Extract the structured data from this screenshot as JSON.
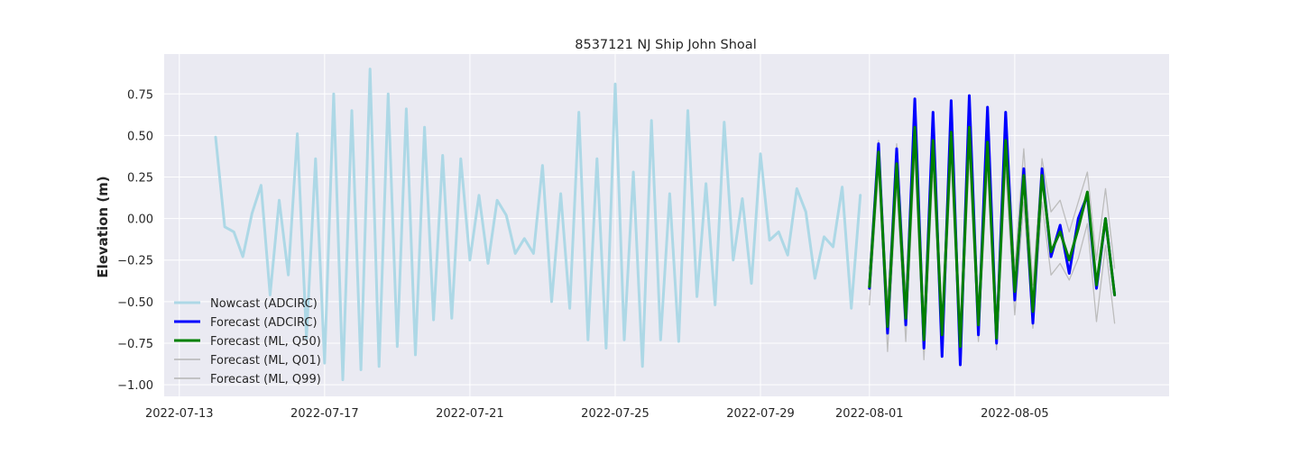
{
  "chart_data": {
    "type": "line",
    "title": "8537121 NJ Ship John Shoal",
    "xlabel": "",
    "ylabel": "Elevation (m)",
    "xlim": [
      "2022-07-12T14:00",
      "2022-08-09T06:00"
    ],
    "ylim": [
      -1.07,
      0.99
    ],
    "grid": true,
    "legend_position": "lower-left",
    "x_ticks": [
      "2022-07-13",
      "2022-07-17",
      "2022-07-21",
      "2022-07-25",
      "2022-07-29",
      "2022-08-01",
      "2022-08-05"
    ],
    "y_ticks": [
      "0.75",
      "0.50",
      "0.25",
      "0.00",
      "−0.25",
      "−0.50",
      "−0.75",
      "−1.00"
    ],
    "y_tick_values": [
      0.75,
      0.5,
      0.25,
      0.0,
      -0.25,
      -0.5,
      -0.75,
      -1.0
    ],
    "series": [
      {
        "name": "Nowcast (ADCIRC)",
        "color": "#add8e6",
        "width": 3,
        "legend_width": 3,
        "points": [
          [
            "2022-07-14T00:00",
            0.49
          ],
          [
            "2022-07-14T06:00",
            -0.05
          ],
          [
            "2022-07-14T12:00",
            -0.08
          ],
          [
            "2022-07-14T18:00",
            -0.23
          ],
          [
            "2022-07-15T00:00",
            0.03
          ],
          [
            "2022-07-15T06:00",
            0.2
          ],
          [
            "2022-07-15T12:00",
            -0.46
          ],
          [
            "2022-07-15T18:00",
            0.11
          ],
          [
            "2022-07-16T00:00",
            -0.34
          ],
          [
            "2022-07-16T06:00",
            0.51
          ],
          [
            "2022-07-16T12:00",
            -0.72
          ],
          [
            "2022-07-16T18:00",
            0.36
          ],
          [
            "2022-07-17T00:00",
            -0.87
          ],
          [
            "2022-07-17T06:00",
            0.75
          ],
          [
            "2022-07-17T12:00",
            -0.97
          ],
          [
            "2022-07-17T18:00",
            0.65
          ],
          [
            "2022-07-18T00:00",
            -0.91
          ],
          [
            "2022-07-18T06:00",
            0.9
          ],
          [
            "2022-07-18T12:00",
            -0.89
          ],
          [
            "2022-07-18T18:00",
            0.75
          ],
          [
            "2022-07-19T00:00",
            -0.77
          ],
          [
            "2022-07-19T06:00",
            0.66
          ],
          [
            "2022-07-19T12:00",
            -0.82
          ],
          [
            "2022-07-19T18:00",
            0.55
          ],
          [
            "2022-07-20T00:00",
            -0.61
          ],
          [
            "2022-07-20T06:00",
            0.38
          ],
          [
            "2022-07-20T12:00",
            -0.6
          ],
          [
            "2022-07-20T18:00",
            0.36
          ],
          [
            "2022-07-21T00:00",
            -0.25
          ],
          [
            "2022-07-21T06:00",
            0.14
          ],
          [
            "2022-07-21T12:00",
            -0.27
          ],
          [
            "2022-07-21T18:00",
            0.11
          ],
          [
            "2022-07-22T00:00",
            0.02
          ],
          [
            "2022-07-22T06:00",
            -0.21
          ],
          [
            "2022-07-22T12:00",
            -0.12
          ],
          [
            "2022-07-22T18:00",
            -0.21
          ],
          [
            "2022-07-23T00:00",
            0.32
          ],
          [
            "2022-07-23T06:00",
            -0.5
          ],
          [
            "2022-07-23T12:00",
            0.15
          ],
          [
            "2022-07-23T18:00",
            -0.54
          ],
          [
            "2022-07-24T00:00",
            0.64
          ],
          [
            "2022-07-24T06:00",
            -0.73
          ],
          [
            "2022-07-24T12:00",
            0.36
          ],
          [
            "2022-07-24T18:00",
            -0.78
          ],
          [
            "2022-07-25T00:00",
            0.81
          ],
          [
            "2022-07-25T06:00",
            -0.73
          ],
          [
            "2022-07-25T12:00",
            0.28
          ],
          [
            "2022-07-25T18:00",
            -0.89
          ],
          [
            "2022-07-26T00:00",
            0.59
          ],
          [
            "2022-07-26T06:00",
            -0.73
          ],
          [
            "2022-07-26T12:00",
            0.15
          ],
          [
            "2022-07-26T18:00",
            -0.74
          ],
          [
            "2022-07-27T00:00",
            0.65
          ],
          [
            "2022-07-27T06:00",
            -0.47
          ],
          [
            "2022-07-27T12:00",
            0.21
          ],
          [
            "2022-07-27T18:00",
            -0.52
          ],
          [
            "2022-07-28T00:00",
            0.58
          ],
          [
            "2022-07-28T06:00",
            -0.25
          ],
          [
            "2022-07-28T12:00",
            0.12
          ],
          [
            "2022-07-28T18:00",
            -0.39
          ],
          [
            "2022-07-29T00:00",
            0.39
          ],
          [
            "2022-07-29T06:00",
            -0.13
          ],
          [
            "2022-07-29T12:00",
            -0.08
          ],
          [
            "2022-07-29T18:00",
            -0.22
          ],
          [
            "2022-07-30T00:00",
            0.18
          ],
          [
            "2022-07-30T06:00",
            0.04
          ],
          [
            "2022-07-30T12:00",
            -0.36
          ],
          [
            "2022-07-30T18:00",
            -0.11
          ],
          [
            "2022-07-31T00:00",
            -0.17
          ],
          [
            "2022-07-31T06:00",
            0.19
          ],
          [
            "2022-07-31T12:00",
            -0.54
          ],
          [
            "2022-07-31T18:00",
            0.14
          ]
        ]
      },
      {
        "name": "Forecast (ADCIRC)",
        "color": "#0000ff",
        "width": 3,
        "legend_width": 3,
        "points": [
          [
            "2022-08-01T00:00",
            -0.42
          ],
          [
            "2022-08-01T06:00",
            0.45
          ],
          [
            "2022-08-01T12:00",
            -0.69
          ],
          [
            "2022-08-01T18:00",
            0.42
          ],
          [
            "2022-08-02T00:00",
            -0.64
          ],
          [
            "2022-08-02T06:00",
            0.72
          ],
          [
            "2022-08-02T12:00",
            -0.78
          ],
          [
            "2022-08-02T18:00",
            0.64
          ],
          [
            "2022-08-03T00:00",
            -0.83
          ],
          [
            "2022-08-03T06:00",
            0.71
          ],
          [
            "2022-08-03T12:00",
            -0.88
          ],
          [
            "2022-08-03T18:00",
            0.74
          ],
          [
            "2022-08-04T00:00",
            -0.7
          ],
          [
            "2022-08-04T06:00",
            0.67
          ],
          [
            "2022-08-04T12:00",
            -0.75
          ],
          [
            "2022-08-04T18:00",
            0.64
          ],
          [
            "2022-08-05T00:00",
            -0.49
          ],
          [
            "2022-08-05T06:00",
            0.3
          ],
          [
            "2022-08-05T12:00",
            -0.63
          ],
          [
            "2022-08-05T18:00",
            0.3
          ],
          [
            "2022-08-06T00:00",
            -0.23
          ],
          [
            "2022-08-06T06:00",
            -0.04
          ],
          [
            "2022-08-06T12:00",
            -0.33
          ],
          [
            "2022-08-06T18:00",
            0.0
          ],
          [
            "2022-08-07T00:00",
            0.14
          ],
          [
            "2022-08-07T06:00",
            -0.42
          ],
          [
            "2022-08-07T12:00",
            0.0
          ],
          [
            "2022-08-07T18:00",
            -0.46
          ]
        ]
      },
      {
        "name": "Forecast (ML, Q50)",
        "color": "#008000",
        "width": 3,
        "legend_width": 3,
        "points": [
          [
            "2022-08-01T00:00",
            -0.41
          ],
          [
            "2022-08-01T06:00",
            0.4
          ],
          [
            "2022-08-01T12:00",
            -0.65
          ],
          [
            "2022-08-01T18:00",
            0.33
          ],
          [
            "2022-08-02T00:00",
            -0.6
          ],
          [
            "2022-08-02T06:00",
            0.55
          ],
          [
            "2022-08-02T12:00",
            -0.73
          ],
          [
            "2022-08-02T18:00",
            0.47
          ],
          [
            "2022-08-03T00:00",
            -0.7
          ],
          [
            "2022-08-03T06:00",
            0.52
          ],
          [
            "2022-08-03T12:00",
            -0.77
          ],
          [
            "2022-08-03T18:00",
            0.55
          ],
          [
            "2022-08-04T00:00",
            -0.64
          ],
          [
            "2022-08-04T06:00",
            0.46
          ],
          [
            "2022-08-04T12:00",
            -0.72
          ],
          [
            "2022-08-04T18:00",
            0.47
          ],
          [
            "2022-08-05T00:00",
            -0.44
          ],
          [
            "2022-08-05T06:00",
            0.26
          ],
          [
            "2022-08-05T12:00",
            -0.56
          ],
          [
            "2022-08-05T18:00",
            0.26
          ],
          [
            "2022-08-06T00:00",
            -0.2
          ],
          [
            "2022-08-06T06:00",
            -0.08
          ],
          [
            "2022-08-06T12:00",
            -0.25
          ],
          [
            "2022-08-06T18:00",
            -0.06
          ],
          [
            "2022-08-07T00:00",
            0.16
          ],
          [
            "2022-08-07T06:00",
            -0.4
          ],
          [
            "2022-08-07T12:00",
            0.0
          ],
          [
            "2022-08-07T18:00",
            -0.46
          ]
        ]
      },
      {
        "name": "Forecast (ML, Q01)",
        "color": "#bdbdbd",
        "width": 1.3,
        "legend_width": 1.8,
        "points": [
          [
            "2022-08-01T00:00",
            -0.52
          ],
          [
            "2022-08-01T06:00",
            0.3
          ],
          [
            "2022-08-01T12:00",
            -0.8
          ],
          [
            "2022-08-01T18:00",
            0.2
          ],
          [
            "2022-08-02T00:00",
            -0.74
          ],
          [
            "2022-08-02T06:00",
            0.38
          ],
          [
            "2022-08-02T12:00",
            -0.85
          ],
          [
            "2022-08-02T18:00",
            0.3
          ],
          [
            "2022-08-03T00:00",
            -0.8
          ],
          [
            "2022-08-03T06:00",
            0.36
          ],
          [
            "2022-08-03T12:00",
            -0.87
          ],
          [
            "2022-08-03T18:00",
            0.38
          ],
          [
            "2022-08-04T00:00",
            -0.74
          ],
          [
            "2022-08-04T06:00",
            0.3
          ],
          [
            "2022-08-04T12:00",
            -0.79
          ],
          [
            "2022-08-04T18:00",
            0.3
          ],
          [
            "2022-08-05T00:00",
            -0.58
          ],
          [
            "2022-08-05T06:00",
            0.1
          ],
          [
            "2022-08-05T12:00",
            -0.66
          ],
          [
            "2022-08-05T18:00",
            0.1
          ],
          [
            "2022-08-06T00:00",
            -0.34
          ],
          [
            "2022-08-06T06:00",
            -0.27
          ],
          [
            "2022-08-06T12:00",
            -0.37
          ],
          [
            "2022-08-06T18:00",
            -0.24
          ],
          [
            "2022-08-07T00:00",
            -0.03
          ],
          [
            "2022-08-07T06:00",
            -0.62
          ],
          [
            "2022-08-07T12:00",
            -0.16
          ],
          [
            "2022-08-07T18:00",
            -0.63
          ]
        ]
      },
      {
        "name": "Forecast (ML, Q99)",
        "color": "#bdbdbd",
        "width": 1.3,
        "legend_width": 1.8,
        "points": [
          [
            "2022-08-01T00:00",
            -0.3
          ],
          [
            "2022-08-01T06:00",
            0.47
          ],
          [
            "2022-08-01T12:00",
            -0.5
          ],
          [
            "2022-08-01T18:00",
            0.45
          ],
          [
            "2022-08-02T00:00",
            -0.45
          ],
          [
            "2022-08-02T06:00",
            0.68
          ],
          [
            "2022-08-02T12:00",
            -0.6
          ],
          [
            "2022-08-02T18:00",
            0.6
          ],
          [
            "2022-08-03T00:00",
            -0.6
          ],
          [
            "2022-08-03T06:00",
            0.66
          ],
          [
            "2022-08-03T12:00",
            -0.65
          ],
          [
            "2022-08-03T18:00",
            0.67
          ],
          [
            "2022-08-04T00:00",
            -0.55
          ],
          [
            "2022-08-04T06:00",
            0.6
          ],
          [
            "2022-08-04T12:00",
            -0.6
          ],
          [
            "2022-08-04T18:00",
            0.6
          ],
          [
            "2022-08-05T00:00",
            -0.3
          ],
          [
            "2022-08-05T06:00",
            0.42
          ],
          [
            "2022-08-05T12:00",
            -0.4
          ],
          [
            "2022-08-05T18:00",
            0.36
          ],
          [
            "2022-08-06T00:00",
            0.04
          ],
          [
            "2022-08-06T06:00",
            0.11
          ],
          [
            "2022-08-06T12:00",
            -0.08
          ],
          [
            "2022-08-06T18:00",
            0.1
          ],
          [
            "2022-08-07T00:00",
            0.28
          ],
          [
            "2022-08-07T06:00",
            -0.25
          ],
          [
            "2022-08-07T12:00",
            0.18
          ],
          [
            "2022-08-07T18:00",
            -0.3
          ]
        ]
      }
    ]
  }
}
